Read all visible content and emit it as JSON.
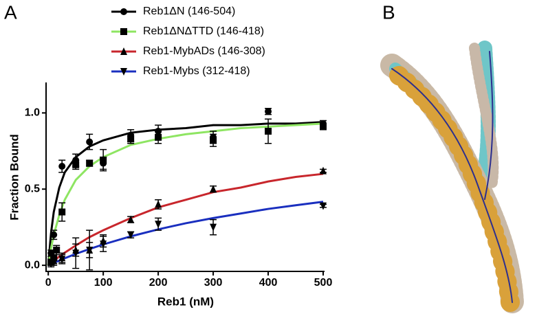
{
  "panel_labels": [
    "A",
    "B"
  ],
  "chart_data": {
    "type": "scatter",
    "xlabel": "Reb1 (nM)",
    "ylabel": "Fraction Bound",
    "xlim": [
      -4,
      500
    ],
    "xticks": [
      0,
      100,
      200,
      300,
      400,
      500
    ],
    "ylim": [
      -0.04,
      1.2
    ],
    "yticks": [
      {
        "value": 0,
        "label": "0.0"
      },
      {
        "value": 0.5,
        "label": "0.5"
      },
      {
        "value": 1,
        "label": "1.0"
      }
    ],
    "legend": "top",
    "fit_x": [
      0,
      5,
      10,
      20,
      30,
      50,
      75,
      100,
      150,
      200,
      250,
      300,
      350,
      400,
      450,
      500
    ],
    "series": [
      {
        "name": "Reb1ΔN (146-504)",
        "color": "#000000",
        "marker": "circle",
        "x": [
          5,
          10,
          25,
          50,
          75,
          100,
          150,
          200,
          300,
          400,
          500
        ],
        "values": [
          0.08,
          0.2,
          0.65,
          0.69,
          0.81,
          0.67,
          0.85,
          0.88,
          0.84,
          1.01,
          0.93
        ],
        "errors": [
          0.02,
          0.03,
          0.04,
          0.04,
          0.05,
          0.04,
          0.04,
          0.04,
          0.04,
          0.02,
          0.02
        ],
        "fit": [
          0,
          0.21,
          0.35,
          0.51,
          0.61,
          0.71,
          0.78,
          0.82,
          0.87,
          0.89,
          0.9,
          0.92,
          0.92,
          0.93,
          0.93,
          0.94
        ]
      },
      {
        "name": "Reb1ΔNΔTTD (146-418)",
        "color": "#8ee562",
        "marker": "square",
        "x": [
          5,
          10,
          15,
          25,
          50,
          75,
          100,
          150,
          200,
          300,
          400,
          500
        ],
        "values": [
          0.02,
          0.05,
          0.1,
          0.35,
          0.66,
          0.67,
          0.69,
          0.83,
          0.84,
          0.82,
          0.88,
          0.91
        ],
        "errors": [
          0.02,
          0.02,
          0.03,
          0.06,
          0.03,
          0.02,
          0.07,
          0.03,
          0.04,
          0.04,
          0.08,
          0.02
        ],
        "fit": [
          0,
          0.11,
          0.2,
          0.33,
          0.43,
          0.56,
          0.65,
          0.71,
          0.79,
          0.83,
          0.86,
          0.88,
          0.9,
          0.91,
          0.92,
          0.93
        ]
      },
      {
        "name": "Reb1-MybADs (146-308)",
        "color": "#c8262c",
        "marker": "triangle",
        "x": [
          5,
          10,
          25,
          50,
          75,
          100,
          150,
          200,
          300,
          500
        ],
        "values": [
          0.02,
          0.03,
          0.05,
          0.1,
          0.1,
          0.16,
          0.3,
          0.4,
          0.5,
          0.62
        ],
        "errors": [
          0.02,
          0.02,
          0.03,
          0.04,
          0.05,
          0.04,
          0.02,
          0.03,
          0.02,
          0.01
        ],
        "fit": [
          0,
          0.015,
          0.03,
          0.057,
          0.083,
          0.13,
          0.185,
          0.23,
          0.31,
          0.38,
          0.43,
          0.48,
          0.51,
          0.55,
          0.58,
          0.6
        ]
      },
      {
        "name": "Reb1-Mybs (312-418)",
        "color": "#1a2fbf",
        "marker": "triangle-down",
        "x": [
          5,
          10,
          25,
          50,
          75,
          100,
          150,
          200,
          300,
          500
        ],
        "values": [
          0.01,
          0.02,
          0.04,
          0.08,
          0.1,
          0.14,
          0.2,
          0.27,
          0.25,
          0.39
        ],
        "errors": [
          0.02,
          0.02,
          0.03,
          0.1,
          0.13,
          0.05,
          0.02,
          0.04,
          0.05,
          0.01
        ],
        "fit": [
          0,
          0.008,
          0.016,
          0.031,
          0.046,
          0.075,
          0.107,
          0.137,
          0.19,
          0.236,
          0.276,
          0.31,
          0.34,
          0.37,
          0.394,
          0.417
        ]
      }
    ]
  }
}
